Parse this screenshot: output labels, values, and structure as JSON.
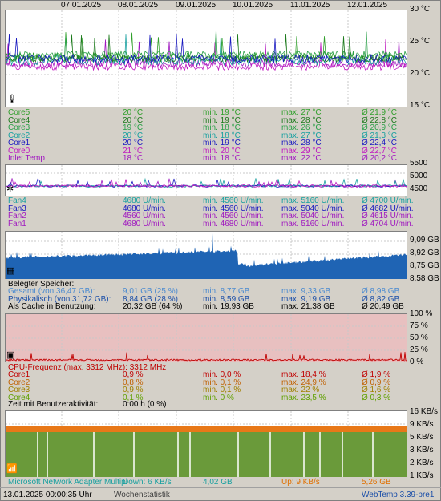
{
  "dates": [
    "07.01.2025",
    "08.01.2025",
    "09.01.2025",
    "10.01.2025",
    "11.01.2025",
    "12.01.2025"
  ],
  "temp": {
    "axis": [
      "30 °C",
      "25 °C",
      "20 °C",
      "15 °C"
    ],
    "icon": "thermometer-icon",
    "rows": [
      {
        "name": "Core5",
        "cur": "20 °C",
        "min": "min. 19 °C",
        "max": "max. 27 °C",
        "avg": "Ø 21,9 °C",
        "color": "#31a02c"
      },
      {
        "name": "Core4",
        "cur": "20 °C",
        "min": "min. 19 °C",
        "max": "max. 28 °C",
        "avg": "Ø 22,8 °C",
        "color": "#1c7a1c"
      },
      {
        "name": "Core3",
        "cur": "19 °C",
        "min": "min. 18 °C",
        "max": "max. 26 °C",
        "avg": "Ø 20,9 °C",
        "color": "#2aa048"
      },
      {
        "name": "Core2",
        "cur": "20 °C",
        "min": "min. 18 °C",
        "max": "max. 27 °C",
        "avg": "Ø 21,3 °C",
        "color": "#18a0a0"
      },
      {
        "name": "Core1",
        "cur": "20 °C",
        "min": "min. 19 °C",
        "max": "max. 28 °C",
        "avg": "Ø 22,4 °C",
        "color": "#1818c0"
      },
      {
        "name": "Core0",
        "cur": "21 °C",
        "min": "min. 20 °C",
        "max": "max. 29 °C",
        "avg": "Ø 22,7 °C",
        "color": "#c018c0"
      },
      {
        "name": "Inlet Temp",
        "cur": "18 °C",
        "min": "min. 18 °C",
        "max": "max. 22 °C",
        "avg": "Ø 20,2 °C",
        "color": "#a018c0"
      }
    ]
  },
  "fan": {
    "axis": [
      "5500",
      "5000",
      "4500"
    ],
    "icon": "fan-icon",
    "rows": [
      {
        "name": "Fan4",
        "cur": "4680 U/min.",
        "min": "min. 4560 U/min.",
        "max": "max. 5160 U/min.",
        "avg": "Ø 4700 U/min.",
        "color": "#18a0a0"
      },
      {
        "name": "Fan3",
        "cur": "4680 U/min.",
        "min": "min. 4560 U/min.",
        "max": "max. 5040 U/min.",
        "avg": "Ø 4682 U/min.",
        "color": "#1818c0"
      },
      {
        "name": "Fan2",
        "cur": "4560 U/min.",
        "min": "min. 4560 U/min.",
        "max": "max. 5040 U/min.",
        "avg": "Ø 4615 U/min.",
        "color": "#a018c0"
      },
      {
        "name": "Fan1",
        "cur": "4680 U/min.",
        "min": "min. 4680 U/min.",
        "max": "max. 5160 U/min.",
        "avg": "Ø 4704 U/min.",
        "color": "#a018c0"
      }
    ]
  },
  "mem": {
    "axis": [
      "9,09 GB",
      "8,92 GB",
      "8,75 GB",
      "8,58 GB"
    ],
    "icon": "memory-chip-icon",
    "title": "Belegter Speicher:",
    "rows": [
      {
        "name": "Gesamt (von 36,47 GB):",
        "cur": "9,01 GB (25 %)",
        "min": "min. 8,77 GB",
        "max": "max. 9,33 GB",
        "avg": "Ø 8,98 GB",
        "color": "#4a8ad0"
      },
      {
        "name": "Physikalisch (von 31,72 GB):",
        "cur": "8,84 GB (28 %)",
        "min": "min. 8,59 GB",
        "max": "max. 9,19 GB",
        "avg": "Ø 8,82 GB",
        "color": "#1a4ea8"
      },
      {
        "name": "Als Cache in Benutzung:",
        "cur": "20,32 GB (64 %)",
        "min": "min. 19,93 GB",
        "max": "max. 21,38 GB",
        "avg": "Ø 20,49 GB",
        "color": "#000000"
      }
    ]
  },
  "cpu": {
    "axis": [
      "100 %",
      "75 %",
      "50 %",
      "25 %",
      "0 %"
    ],
    "icon": "cpu-icon",
    "title": "CPU-Frequenz (max. 3312 MHz): 3312 MHz",
    "rows": [
      {
        "name": "Core1",
        "cur": "0,9 %",
        "min": "min. 0,0 %",
        "max": "max. 18,4 %",
        "avg": "Ø 1,9 %",
        "color": "#c00000"
      },
      {
        "name": "Core2",
        "cur": "0,8 %",
        "min": "min. 0,1 %",
        "max": "max. 24,9 %",
        "avg": "Ø 0,9 %",
        "color": "#c06000"
      },
      {
        "name": "Core3",
        "cur": "0,9 %",
        "min": "min. 0,1 %",
        "max": "max. 22 %",
        "avg": "Ø 1,6 %",
        "color": "#a08000"
      },
      {
        "name": "Core4",
        "cur": "0,1 %",
        "min": "min. 0 %",
        "max": "max. 23,5 %",
        "avg": "Ø 0,3 %",
        "color": "#60a000"
      }
    ],
    "activity_label": "Zeit mit Benutzeraktivität:",
    "activity_value": "0:00 h (0 %)"
  },
  "net": {
    "axis": [
      "16 KB/s",
      "9 KB/s",
      "5 KB/s",
      "3 KB/s",
      "2 KB/s",
      "1 KB/s"
    ],
    "icon": "network-icon",
    "adapter": "Microsoft Network Adapter Multipl",
    "down": "Down: 6 KB/s",
    "down_total": "4,02 GB",
    "up": "Up: 9 KB/s",
    "up_total": "5,26 GB"
  },
  "status": {
    "datetime": "13.01.2025 00:00:35 Uhr",
    "link": "Wochenstatistik",
    "version": "WebTemp 3.39-pre1"
  }
}
